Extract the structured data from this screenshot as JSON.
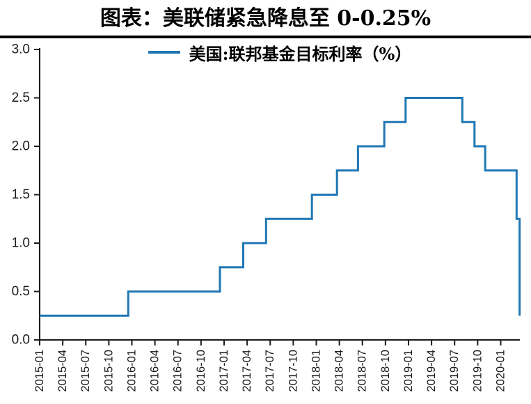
{
  "figure": {
    "title": "图表：美联储紧急降息至 0-0.25%"
  },
  "legend": {
    "label": "美国:联邦基金目标利率（%）"
  },
  "colors": {
    "line": "#1f77b4",
    "axis": "#1a1a1a",
    "tick_label": "#1a1a1a",
    "divider": "#000000",
    "title_text": "#000000",
    "background": "#ffffff"
  },
  "chart_data": {
    "type": "line",
    "step": "post",
    "title": "图表：美联储紧急降息至 0-0.25%",
    "series": [
      {
        "name": "美国:联邦基金目标利率（%）",
        "color": "#1f77b4",
        "steps": [
          {
            "date": "2015-01-01",
            "value": 0.25
          },
          {
            "date": "2015-12-17",
            "value": 0.5
          },
          {
            "date": "2016-12-15",
            "value": 0.75
          },
          {
            "date": "2017-03-16",
            "value": 1.0
          },
          {
            "date": "2017-06-15",
            "value": 1.25
          },
          {
            "date": "2017-12-14",
            "value": 1.5
          },
          {
            "date": "2018-03-22",
            "value": 1.75
          },
          {
            "date": "2018-06-14",
            "value": 2.0
          },
          {
            "date": "2018-09-27",
            "value": 2.25
          },
          {
            "date": "2018-12-20",
            "value": 2.5
          },
          {
            "date": "2019-08-01",
            "value": 2.25
          },
          {
            "date": "2019-09-19",
            "value": 2.0
          },
          {
            "date": "2019-10-31",
            "value": 1.75
          },
          {
            "date": "2020-03-03",
            "value": 1.25
          },
          {
            "date": "2020-03-15",
            "value": 0.25
          }
        ]
      }
    ],
    "x_ticks": [
      "2015-01",
      "2015-04",
      "2015-07",
      "2015-10",
      "2016-01",
      "2016-04",
      "2016-07",
      "2016-10",
      "2017-01",
      "2017-04",
      "2017-07",
      "2017-10",
      "2018-01",
      "2018-04",
      "2018-07",
      "2018-10",
      "2019-01",
      "2019-04",
      "2019-07",
      "2019-10",
      "2020-01"
    ],
    "x_range": [
      "2015-01-01",
      "2020-03-16"
    ],
    "y_ticks": [
      "0.0",
      "0.5",
      "1.0",
      "1.5",
      "2.0",
      "2.5",
      "3.0"
    ],
    "ylim": [
      0,
      3
    ],
    "grid": false,
    "legend_position": "upper-center"
  }
}
